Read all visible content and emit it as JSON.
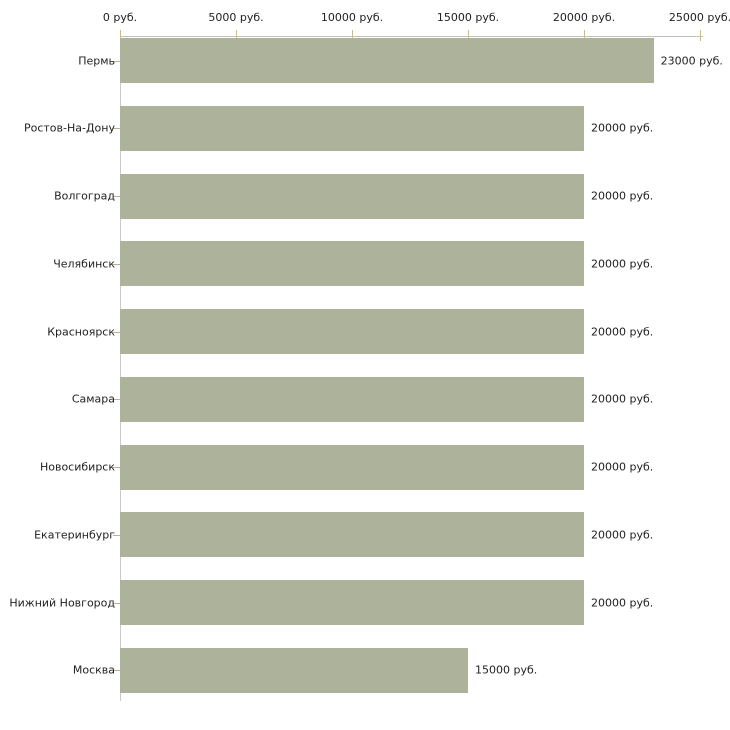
{
  "chart_data": {
    "type": "bar",
    "orientation": "horizontal",
    "title": "",
    "categories": [
      "Пермь",
      "Ростов-На-Дону",
      "Волгоград",
      "Челябинск",
      "Красноярск",
      "Самара",
      "Новосибирск",
      "Екатеринбург",
      "Нижний Новгород",
      "Москва"
    ],
    "values": [
      23000,
      20000,
      20000,
      20000,
      20000,
      20000,
      20000,
      20000,
      20000,
      15000
    ],
    "value_labels": [
      "23000 руб.",
      "20000 руб.",
      "20000 руб.",
      "20000 руб.",
      "20000 руб.",
      "20000 руб.",
      "20000 руб.",
      "20000 руб.",
      "20000 руб.",
      "15000 руб."
    ],
    "x_axis": {
      "position": "top",
      "ticks": [
        0,
        5000,
        10000,
        15000,
        20000,
        25000
      ],
      "tick_labels": [
        "0 руб.",
        "5000 руб.",
        "10000 руб.",
        "15000 руб.",
        "20000 руб.",
        "25000 руб."
      ],
      "range": [
        0,
        25000
      ]
    },
    "grid": false,
    "legend": false,
    "colors": {
      "bar": "#adb39a",
      "axis_line": "#c0c0c0",
      "tick": "#c6bd8e",
      "category_tick": "#b9b193",
      "text": "#222222",
      "background": "#ffffff"
    }
  }
}
